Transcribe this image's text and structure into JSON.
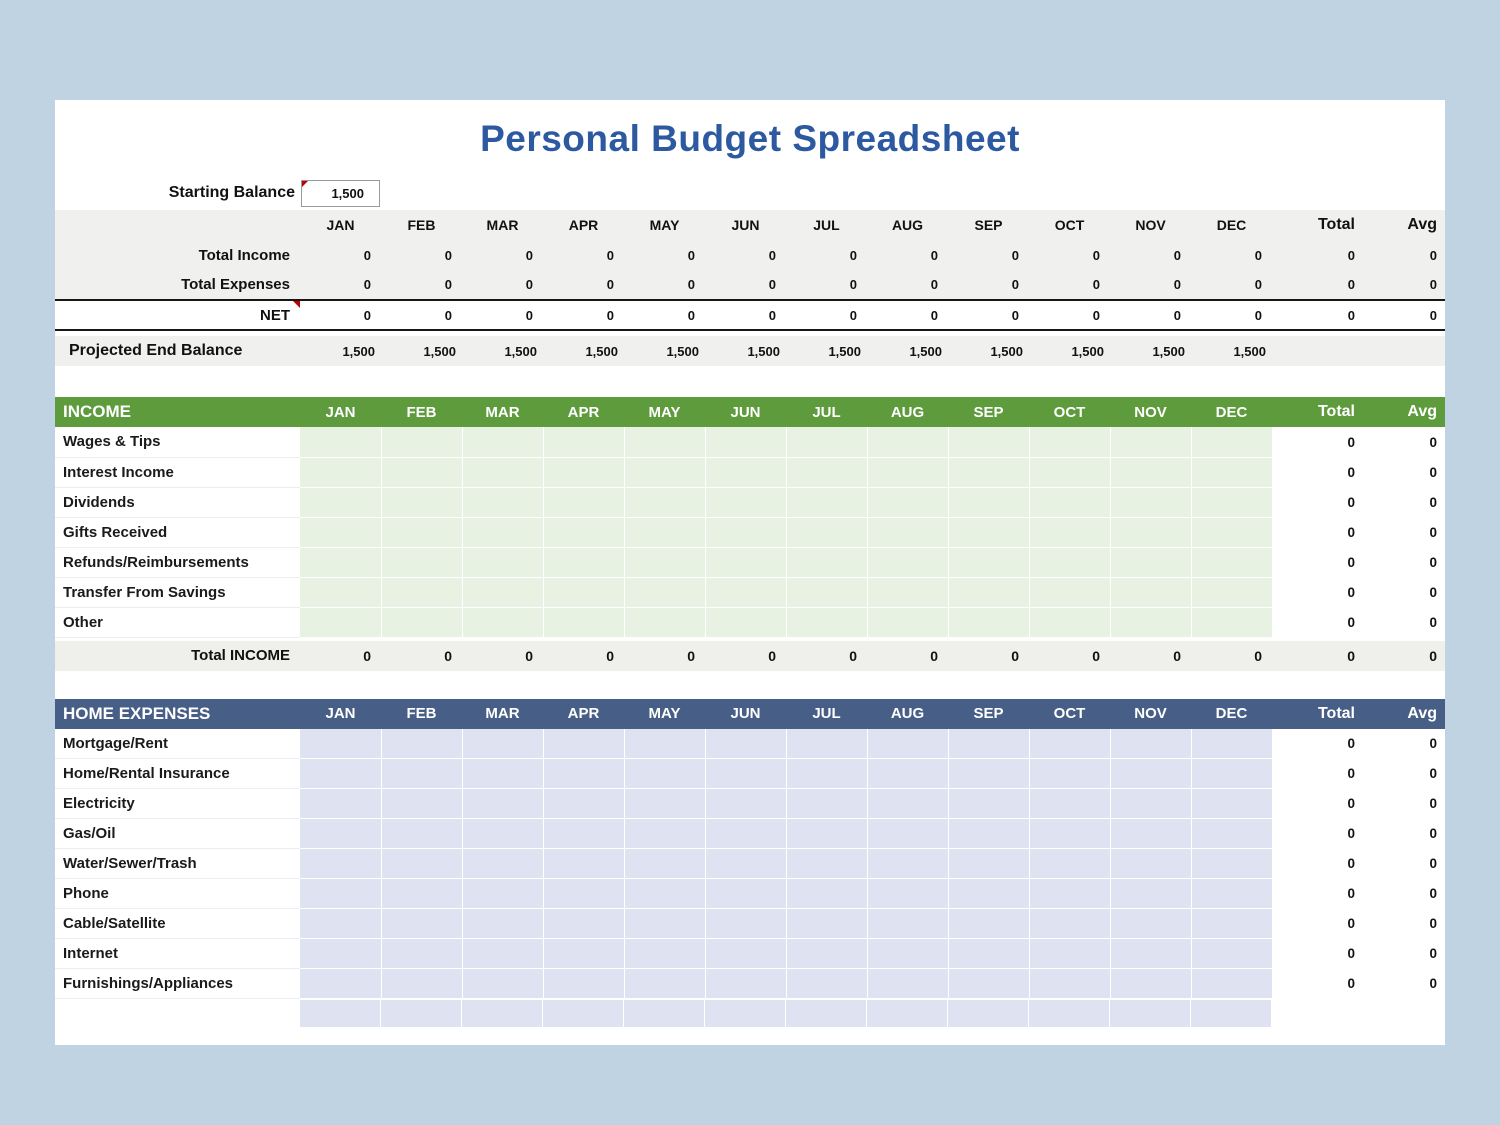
{
  "title": "Personal Budget Spreadsheet",
  "starting_balance": {
    "label": "Starting Balance",
    "value": "1,500"
  },
  "columns": {
    "months": [
      "JAN",
      "FEB",
      "MAR",
      "APR",
      "MAY",
      "JUN",
      "JUL",
      "AUG",
      "SEP",
      "OCT",
      "NOV",
      "DEC"
    ],
    "total_label": "Total",
    "avg_label": "Avg"
  },
  "summary": {
    "rows": [
      {
        "label": "Total Income",
        "cells": [
          "0",
          "0",
          "0",
          "0",
          "0",
          "0",
          "0",
          "0",
          "0",
          "0",
          "0",
          "0"
        ],
        "total": "0",
        "avg": "0"
      },
      {
        "label": "Total Expenses",
        "cells": [
          "0",
          "0",
          "0",
          "0",
          "0",
          "0",
          "0",
          "0",
          "0",
          "0",
          "0",
          "0"
        ],
        "total": "0",
        "avg": "0"
      },
      {
        "label": "NET",
        "cells": [
          "0",
          "0",
          "0",
          "0",
          "0",
          "0",
          "0",
          "0",
          "0",
          "0",
          "0",
          "0"
        ],
        "total": "0",
        "avg": "0"
      }
    ],
    "projected_rows": [
      {
        "label": "Projected End Balance",
        "cells": [
          "1,500",
          "1,500",
          "1,500",
          "1,500",
          "1,500",
          "1,500",
          "1,500",
          "1,500",
          "1,500",
          "1,500",
          "1,500",
          "1,500"
        ],
        "total": "",
        "avg": ""
      }
    ]
  },
  "income": {
    "header": "INCOME",
    "rows": [
      {
        "label": "Wages & Tips",
        "cells": [
          "",
          "",
          "",
          "",
          "",
          "",
          "",
          "",
          "",
          "",
          "",
          ""
        ],
        "total": "0",
        "avg": "0"
      },
      {
        "label": "Interest Income",
        "cells": [
          "",
          "",
          "",
          "",
          "",
          "",
          "",
          "",
          "",
          "",
          "",
          ""
        ],
        "total": "0",
        "avg": "0"
      },
      {
        "label": "Dividends",
        "cells": [
          "",
          "",
          "",
          "",
          "",
          "",
          "",
          "",
          "",
          "",
          "",
          ""
        ],
        "total": "0",
        "avg": "0"
      },
      {
        "label": "Gifts Received",
        "cells": [
          "",
          "",
          "",
          "",
          "",
          "",
          "",
          "",
          "",
          "",
          "",
          ""
        ],
        "total": "0",
        "avg": "0"
      },
      {
        "label": "Refunds/Reimbursements",
        "cells": [
          "",
          "",
          "",
          "",
          "",
          "",
          "",
          "",
          "",
          "",
          "",
          ""
        ],
        "total": "0",
        "avg": "0"
      },
      {
        "label": "Transfer From Savings",
        "cells": [
          "",
          "",
          "",
          "",
          "",
          "",
          "",
          "",
          "",
          "",
          "",
          ""
        ],
        "total": "0",
        "avg": "0"
      },
      {
        "label": "Other",
        "cells": [
          "",
          "",
          "",
          "",
          "",
          "",
          "",
          "",
          "",
          "",
          "",
          ""
        ],
        "total": "0",
        "avg": "0"
      }
    ],
    "footer_rows": [
      {
        "label": "Total INCOME",
        "cells": [
          "0",
          "0",
          "0",
          "0",
          "0",
          "0",
          "0",
          "0",
          "0",
          "0",
          "0",
          "0"
        ],
        "total": "0",
        "avg": "0"
      }
    ]
  },
  "home_expenses": {
    "header": "HOME EXPENSES",
    "rows": [
      {
        "label": "Mortgage/Rent",
        "cells": [
          "",
          "",
          "",
          "",
          "",
          "",
          "",
          "",
          "",
          "",
          "",
          ""
        ],
        "total": "0",
        "avg": "0"
      },
      {
        "label": "Home/Rental Insurance",
        "cells": [
          "",
          "",
          "",
          "",
          "",
          "",
          "",
          "",
          "",
          "",
          "",
          ""
        ],
        "total": "0",
        "avg": "0"
      },
      {
        "label": "Electricity",
        "cells": [
          "",
          "",
          "",
          "",
          "",
          "",
          "",
          "",
          "",
          "",
          "",
          ""
        ],
        "total": "0",
        "avg": "0"
      },
      {
        "label": "Gas/Oil",
        "cells": [
          "",
          "",
          "",
          "",
          "",
          "",
          "",
          "",
          "",
          "",
          "",
          ""
        ],
        "total": "0",
        "avg": "0"
      },
      {
        "label": "Water/Sewer/Trash",
        "cells": [
          "",
          "",
          "",
          "",
          "",
          "",
          "",
          "",
          "",
          "",
          "",
          ""
        ],
        "total": "0",
        "avg": "0"
      },
      {
        "label": "Phone",
        "cells": [
          "",
          "",
          "",
          "",
          "",
          "",
          "",
          "",
          "",
          "",
          "",
          ""
        ],
        "total": "0",
        "avg": "0"
      },
      {
        "label": "Cable/Satellite",
        "cells": [
          "",
          "",
          "",
          "",
          "",
          "",
          "",
          "",
          "",
          "",
          "",
          ""
        ],
        "total": "0",
        "avg": "0"
      },
      {
        "label": "Internet",
        "cells": [
          "",
          "",
          "",
          "",
          "",
          "",
          "",
          "",
          "",
          "",
          "",
          ""
        ],
        "total": "0",
        "avg": "0"
      },
      {
        "label": "Furnishings/Appliances",
        "cells": [
          "",
          "",
          "",
          "",
          "",
          "",
          "",
          "",
          "",
          "",
          "",
          ""
        ],
        "total": "0",
        "avg": "0"
      }
    ]
  },
  "colors": {
    "page_background": "#c0d3e2",
    "title_blue": "#2d59a1",
    "income_header_green": "#5d9b3d",
    "income_cell_green": "#e8f2e2",
    "expenses_header_blue": "#475f87",
    "expenses_cell_blue": "#dfe3f1",
    "comment_marker_red": "#c00000",
    "summary_band_gray": "#f0f1ee"
  }
}
